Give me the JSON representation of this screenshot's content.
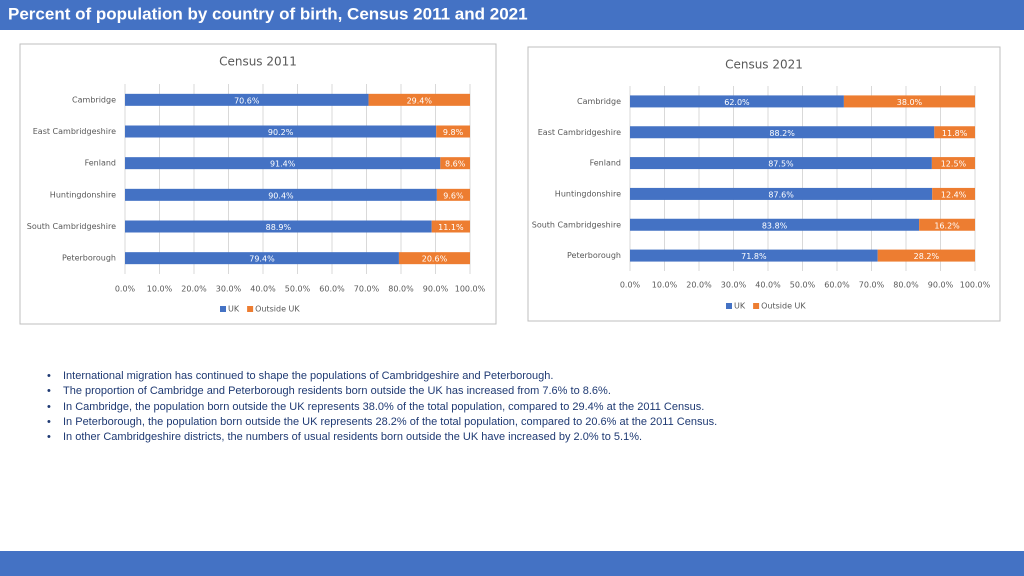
{
  "title": "Percent of population by country of birth, Census 2011 and 2021",
  "chart_data": [
    {
      "type": "bar",
      "orientation": "horizontal",
      "stacked": true,
      "title": "Census 2011",
      "categories": [
        "Cambridge",
        "East Cambridgeshire",
        "Fenland",
        "Huntingdonshire",
        "South Cambridgeshire",
        "Peterborough"
      ],
      "series": [
        {
          "name": "UK",
          "color": "#4472c4",
          "values": [
            70.6,
            90.2,
            91.4,
            90.4,
            88.9,
            79.4
          ],
          "value_labels": [
            "70.6%",
            "90.2%",
            "91.4%",
            "90.4%",
            "88.9%",
            "79.4%"
          ]
        },
        {
          "name": "Outside UK",
          "color": "#ed7d31",
          "values": [
            29.4,
            9.8,
            8.6,
            9.6,
            11.1,
            20.6
          ],
          "value_labels": [
            "29.4%",
            "9.8%",
            "8.6%",
            "9.6%",
            "11.1%",
            "20.6%"
          ]
        }
      ],
      "xlim": [
        0,
        100
      ],
      "xticks": [
        {
          "value": 0,
          "label": "0.0%"
        },
        {
          "value": 10,
          "label": "10.0%"
        },
        {
          "value": 20,
          "label": "20.0%"
        },
        {
          "value": 30,
          "label": "30.0%"
        },
        {
          "value": 40,
          "label": "40.0%"
        },
        {
          "value": 50,
          "label": "50.0%"
        },
        {
          "value": 60,
          "label": "60.0%"
        },
        {
          "value": 70,
          "label": "70.0%"
        },
        {
          "value": 80,
          "label": "80.0%"
        },
        {
          "value": 90,
          "label": "90.0%"
        },
        {
          "value": 100,
          "label": "100.0%"
        }
      ],
      "grid": true,
      "legend": "bottom"
    },
    {
      "type": "bar",
      "orientation": "horizontal",
      "stacked": true,
      "title": "Census 2021",
      "categories": [
        "Cambridge",
        "East Cambridgeshire",
        "Fenland",
        "Huntingdonshire",
        "South Cambridgeshire",
        "Peterborough"
      ],
      "series": [
        {
          "name": "UK",
          "color": "#4472c4",
          "values": [
            62.0,
            88.2,
            87.5,
            87.6,
            83.8,
            71.8
          ],
          "value_labels": [
            "62.0%",
            "88.2%",
            "87.5%",
            "87.6%",
            "83.8%",
            "71.8%"
          ]
        },
        {
          "name": "Outside UK",
          "color": "#ed7d31",
          "values": [
            38.0,
            11.8,
            12.5,
            12.4,
            16.2,
            28.2
          ],
          "value_labels": [
            "38.0%",
            "11.8%",
            "12.5%",
            "12.4%",
            "16.2%",
            "28.2%"
          ]
        }
      ],
      "xlim": [
        0,
        100
      ],
      "xticks": [
        {
          "value": 0,
          "label": "0.0%"
        },
        {
          "value": 10,
          "label": "10.0%"
        },
        {
          "value": 20,
          "label": "20.0%"
        },
        {
          "value": 30,
          "label": "30.0%"
        },
        {
          "value": 40,
          "label": "40.0%"
        },
        {
          "value": 50,
          "label": "50.0%"
        },
        {
          "value": 60,
          "label": "60.0%"
        },
        {
          "value": 70,
          "label": "70.0%"
        },
        {
          "value": 80,
          "label": "80.0%"
        },
        {
          "value": 90,
          "label": "90.0%"
        },
        {
          "value": 100,
          "label": "100.0%"
        }
      ],
      "grid": true,
      "legend": "bottom"
    }
  ],
  "bullets": [
    "International migration has continued to shape the populations of Cambridgeshire and Peterborough.",
    "The proportion of Cambridge and Peterborough residents born outside the UK has increased from 7.6% to 8.6%.",
    "In Cambridge, the population born outside the UK represents 38.0% of the total population, compared to 29.4% at the 2011 Census.",
    "In Peterborough, the population born outside the UK represents 28.2% of the total population, compared to 20.6% at the 2011 Census.",
    "In other Cambridgeshire districts, the numbers of usual residents born outside the UK have increased by 2.0% to 5.1%."
  ]
}
